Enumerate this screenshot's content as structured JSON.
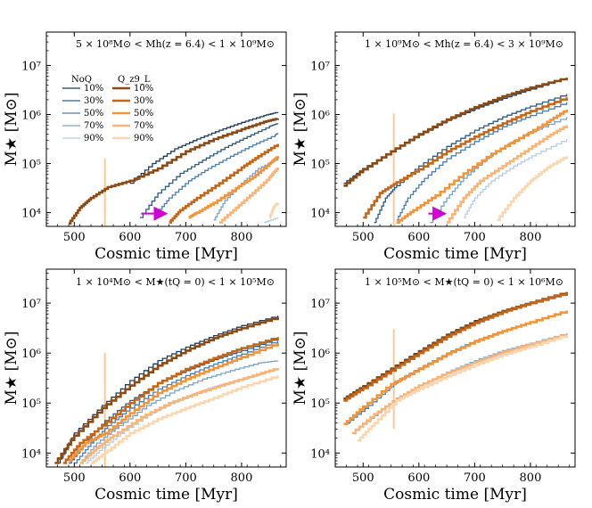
{
  "figure": {
    "xlabel": "Cosmic time [Myr]",
    "ylabel": "M★ [M⊙]"
  },
  "legend": {
    "noq_header": "NoQ",
    "q_header": "Q_z9_L",
    "percentiles": [
      "10%",
      "30%",
      "50%",
      "70%",
      "90%"
    ]
  },
  "colors": {
    "blues": [
      "#1f3b5c",
      "#2e5a85",
      "#4a7eb0",
      "#7aa3cc",
      "#b7cde3"
    ],
    "oranges": [
      "#8b4a14",
      "#c4661a",
      "#f2943a",
      "#f8b479",
      "#fcd6b0"
    ],
    "marker_line": "#fcc89a",
    "arrow": "#d100d1"
  },
  "chart_data": [
    {
      "type": "line",
      "title": "5 × 10⁸M⊙ < Mh(z = 6.4) < 1 × 10⁹M⊙",
      "xlabel": "Cosmic time [Myr]",
      "ylabel": "M★ [M⊙]",
      "xlim": [
        450,
        880
      ],
      "ylim_log10": [
        3.72,
        7.68
      ],
      "yscale": "log",
      "x_ticks": [
        500,
        600,
        700,
        800
      ],
      "y_ticks": [
        "10⁴",
        "10⁵",
        "10⁶",
        "10⁷"
      ],
      "vline": {
        "x": 555,
        "y_from": 3.7,
        "y_to": 5.1
      },
      "arrow": {
        "x_from": 620,
        "x_to": 668,
        "y": 3.98
      },
      "series": [
        {
          "name": "NoQ 10%",
          "x": [
            600,
            640,
            680,
            720,
            760,
            800,
            840,
            865
          ],
          "y": [
            4.6,
            5.0,
            5.3,
            5.5,
            5.68,
            5.84,
            5.98,
            6.05
          ]
        },
        {
          "name": "NoQ 30%",
          "x": [
            618,
            650,
            690,
            730,
            770,
            810,
            850,
            865
          ],
          "y": [
            3.9,
            4.4,
            4.8,
            5.07,
            5.33,
            5.55,
            5.76,
            5.82
          ]
        },
        {
          "name": "NoQ 50%",
          "x": [
            645,
            670,
            705,
            740,
            780,
            820,
            860,
            865
          ],
          "y": [
            3.95,
            4.3,
            4.65,
            4.9,
            5.15,
            5.38,
            5.58,
            5.62
          ]
        },
        {
          "name": "NoQ 70%",
          "x": [
            750,
            770,
            800,
            830,
            865
          ],
          "y": [
            3.85,
            4.25,
            4.6,
            4.9,
            5.1
          ]
        },
        {
          "name": "NoQ 90%",
          "x": [
            840,
            865
          ],
          "y": [
            3.8,
            3.9
          ]
        },
        {
          "name": "Q_z9_L 10%",
          "x": [
            490,
            510,
            530,
            560,
            600,
            650,
            700,
            750,
            800,
            840,
            865
          ],
          "y": [
            3.78,
            4.1,
            4.3,
            4.52,
            4.65,
            4.9,
            5.25,
            5.5,
            5.7,
            5.85,
            5.92
          ]
        },
        {
          "name": "Q_z9_L 30%",
          "x": [
            670,
            690,
            720,
            760,
            800,
            830,
            865
          ],
          "y": [
            3.8,
            4.05,
            4.3,
            4.6,
            4.92,
            5.15,
            5.4
          ]
        },
        {
          "name": "Q_z9_L 50%",
          "x": [
            705,
            720,
            750,
            790,
            820,
            850,
            865
          ],
          "y": [
            3.9,
            4.0,
            4.2,
            4.5,
            4.72,
            5.0,
            5.15
          ]
        },
        {
          "name": "Q_z9_L 70%",
          "x": [
            760,
            790,
            820,
            850,
            865
          ],
          "y": [
            3.8,
            4.1,
            4.4,
            4.72,
            4.92
          ]
        },
        {
          "name": "Q_z9_L 90%",
          "x": [
            850,
            858,
            865
          ],
          "y": [
            3.9,
            4.12,
            4.2
          ]
        }
      ]
    },
    {
      "type": "line",
      "title": "1 × 10⁹M⊙ < Mh(z = 6.4) < 3 × 10⁹M⊙",
      "xlabel": "Cosmic time [Myr]",
      "ylabel": "M★ [M⊙]",
      "xlim": [
        450,
        880
      ],
      "ylim_log10": [
        3.72,
        7.68
      ],
      "yscale": "log",
      "x_ticks": [
        500,
        600,
        700,
        800
      ],
      "y_ticks": [
        "10⁴",
        "10⁵",
        "10⁶",
        "10⁷"
      ],
      "vline": {
        "x": 555,
        "y_from": 3.7,
        "y_to": 6.02
      },
      "arrow": {
        "x_from": 617,
        "x_to": 650,
        "y": 3.98
      },
      "series": [
        {
          "name": "NoQ 10%",
          "x": [
            465,
            500,
            550,
            600,
            650,
            700,
            750,
            800,
            865
          ],
          "y": [
            4.6,
            4.9,
            5.25,
            5.58,
            5.88,
            6.12,
            6.33,
            6.52,
            6.75
          ]
        },
        {
          "name": "NoQ 30%",
          "x": [
            520,
            540,
            560,
            600,
            650,
            700,
            750,
            800,
            865
          ],
          "y": [
            3.8,
            4.3,
            4.55,
            4.95,
            5.35,
            5.68,
            5.95,
            6.17,
            6.42
          ]
        },
        {
          "name": "NoQ 50%",
          "x": [
            560,
            580,
            610,
            650,
            700,
            750,
            800,
            865
          ],
          "y": [
            3.85,
            4.3,
            4.7,
            5.1,
            5.45,
            5.75,
            5.98,
            6.25
          ]
        },
        {
          "name": "NoQ 70%",
          "x": [
            620,
            650,
            680,
            720,
            760,
            800,
            865
          ],
          "y": [
            3.8,
            4.3,
            4.7,
            5.1,
            5.4,
            5.65,
            5.95
          ]
        },
        {
          "name": "NoQ 90%",
          "x": [
            680,
            700,
            730,
            770,
            810,
            865
          ],
          "y": [
            3.9,
            4.3,
            4.65,
            4.95,
            5.2,
            5.5
          ]
        },
        {
          "name": "Q_z9_L 10%",
          "x": [
            465,
            500,
            550,
            600,
            650,
            700,
            750,
            800,
            865
          ],
          "y": [
            4.55,
            4.88,
            5.25,
            5.6,
            5.9,
            6.15,
            6.37,
            6.55,
            6.75
          ]
        },
        {
          "name": "Q_z9_L 30%",
          "x": [
            500,
            530,
            560,
            600,
            650,
            700,
            750,
            800,
            865
          ],
          "y": [
            3.9,
            4.4,
            4.62,
            4.88,
            5.25,
            5.55,
            5.82,
            6.07,
            6.35
          ]
        },
        {
          "name": "Q_z9_L 50%",
          "x": [
            560,
            590,
            630,
            680,
            730,
            780,
            830,
            865
          ],
          "y": [
            3.8,
            4.05,
            4.35,
            4.8,
            5.2,
            5.52,
            5.85,
            6.1
          ]
        },
        {
          "name": "Q_z9_L 70%",
          "x": [
            650,
            680,
            710,
            750,
            790,
            830,
            865
          ],
          "y": [
            3.8,
            4.3,
            4.65,
            4.95,
            5.25,
            5.55,
            5.78
          ]
        },
        {
          "name": "Q_z9_L 90%",
          "x": [
            740,
            770,
            800,
            830,
            865
          ],
          "y": [
            3.85,
            4.3,
            4.65,
            4.92,
            5.15
          ]
        }
      ]
    },
    {
      "type": "line",
      "title": "1 × 10⁴M⊙ < M★(tQ = 0) < 1 × 10⁵M⊙",
      "xlabel": "Cosmic time [Myr]",
      "ylabel": "M★ [M⊙]",
      "xlim": [
        450,
        880
      ],
      "ylim_log10": [
        3.72,
        7.68
      ],
      "yscale": "log",
      "x_ticks": [
        500,
        600,
        700,
        800
      ],
      "y_ticks": [
        "10⁴",
        "10⁵",
        "10⁶",
        "10⁷"
      ],
      "vline": {
        "x": 555,
        "y_from": 3.72,
        "y_to": 6.0
      },
      "series": [
        {
          "name": "NoQ 10%",
          "x": [
            470,
            500,
            550,
            600,
            650,
            700,
            750,
            800,
            865
          ],
          "y": [
            3.8,
            4.4,
            4.95,
            5.45,
            5.85,
            6.12,
            6.35,
            6.55,
            6.75
          ]
        },
        {
          "name": "NoQ 30%",
          "x": [
            490,
            520,
            555,
            600,
            650,
            700,
            750,
            800,
            865
          ],
          "y": [
            3.8,
            4.2,
            4.65,
            5.05,
            5.4,
            5.65,
            5.87,
            6.05,
            6.3
          ]
        },
        {
          "name": "NoQ 50%",
          "x": [
            500,
            530,
            560,
            600,
            650,
            700,
            750,
            800,
            865
          ],
          "y": [
            3.8,
            4.2,
            4.55,
            4.9,
            5.28,
            5.55,
            5.78,
            5.98,
            6.25
          ]
        },
        {
          "name": "NoQ 70%",
          "x": [
            510,
            540,
            580,
            630,
            680,
            730,
            780,
            830,
            865
          ],
          "y": [
            3.8,
            4.2,
            4.55,
            4.95,
            5.25,
            5.48,
            5.65,
            5.8,
            5.85
          ]
        },
        {
          "name": "NoQ 90%",
          "x": [
            520,
            550,
            590,
            640,
            690,
            740,
            790,
            840,
            865
          ],
          "y": [
            3.8,
            4.1,
            4.45,
            4.82,
            5.08,
            5.3,
            5.45,
            5.6,
            5.68
          ]
        },
        {
          "name": "Q_z9_L 10%",
          "x": [
            465,
            500,
            550,
            600,
            650,
            700,
            750,
            800,
            865
          ],
          "y": [
            3.8,
            4.35,
            4.9,
            5.35,
            5.75,
            6.05,
            6.3,
            6.5,
            6.72
          ]
        },
        {
          "name": "Q_z9_L 30%",
          "x": [
            480,
            510,
            550,
            600,
            650,
            700,
            750,
            800,
            865
          ],
          "y": [
            3.8,
            4.2,
            4.55,
            5.0,
            5.4,
            5.68,
            5.9,
            6.1,
            6.32
          ]
        },
        {
          "name": "Q_z9_L 50%",
          "x": [
            490,
            520,
            555,
            600,
            650,
            700,
            750,
            800,
            865
          ],
          "y": [
            3.85,
            4.2,
            4.4,
            4.8,
            5.2,
            5.48,
            5.7,
            5.92,
            6.2
          ]
        },
        {
          "name": "Q_z9_L 70%",
          "x": [
            510,
            540,
            570,
            620,
            670,
            720,
            770,
            820,
            865
          ],
          "y": [
            3.8,
            4.1,
            4.35,
            4.72,
            5.0,
            5.2,
            5.38,
            5.55,
            5.7
          ]
        },
        {
          "name": "Q_z9_L 90%",
          "x": [
            530,
            560,
            600,
            650,
            700,
            750,
            800,
            865
          ],
          "y": [
            3.8,
            4.05,
            4.4,
            4.68,
            4.9,
            5.1,
            5.32,
            5.55
          ]
        }
      ]
    },
    {
      "type": "line",
      "title": "1 × 10⁵M⊙ < M★(tQ = 0) < 1 × 10⁶M⊙",
      "xlabel": "Cosmic time [Myr]",
      "ylabel": "M★ [M⊙]",
      "xlim": [
        450,
        880
      ],
      "ylim_log10": [
        3.72,
        7.68
      ],
      "yscale": "log",
      "x_ticks": [
        500,
        600,
        700,
        800
      ],
      "y_ticks": [
        "10⁴",
        "10⁵",
        "10⁶",
        "10⁷"
      ],
      "vline": {
        "x": 555,
        "y_from": 4.48,
        "y_to": 6.48
      },
      "series": [
        {
          "name": "NoQ 10%",
          "x": [
            465,
            500,
            550,
            600,
            650,
            700,
            750,
            800,
            865
          ],
          "y": [
            5.1,
            5.35,
            5.7,
            6.05,
            6.38,
            6.65,
            6.85,
            7.02,
            7.22
          ]
        },
        {
          "name": "NoQ 30%",
          "x": [
            465,
            500,
            550,
            600,
            650,
            700,
            750,
            800,
            865
          ],
          "y": [
            5.05,
            5.32,
            5.68,
            6.02,
            6.35,
            6.62,
            6.83,
            7.0,
            7.2
          ]
        },
        {
          "name": "NoQ 50%",
          "x": [
            470,
            510,
            555,
            600,
            650,
            700,
            750,
            800,
            865
          ],
          "y": [
            4.6,
            4.95,
            5.4,
            5.7,
            6.0,
            6.25,
            6.45,
            6.62,
            6.85
          ]
        },
        {
          "name": "NoQ 70%",
          "x": [
            480,
            520,
            560,
            600,
            650,
            700,
            750,
            800,
            865
          ],
          "y": [
            4.4,
            4.75,
            5.1,
            5.35,
            5.62,
            5.85,
            6.05,
            6.2,
            6.4
          ]
        },
        {
          "name": "NoQ 90%",
          "x": [
            490,
            520,
            560,
            600,
            650,
            700,
            750,
            800,
            865
          ],
          "y": [
            4.25,
            4.6,
            5.05,
            5.3,
            5.55,
            5.78,
            5.98,
            6.15,
            6.38
          ]
        },
        {
          "name": "Q_z9_L 10%",
          "x": [
            465,
            500,
            550,
            600,
            650,
            700,
            750,
            800,
            865
          ],
          "y": [
            5.08,
            5.33,
            5.68,
            6.03,
            6.36,
            6.63,
            6.84,
            7.01,
            7.22
          ]
        },
        {
          "name": "Q_z9_L 30%",
          "x": [
            465,
            500,
            550,
            600,
            650,
            700,
            750,
            800,
            865
          ],
          "y": [
            5.05,
            5.3,
            5.65,
            6.0,
            6.33,
            6.6,
            6.82,
            7.0,
            7.2
          ]
        },
        {
          "name": "Q_z9_L 50%",
          "x": [
            465,
            500,
            550,
            600,
            650,
            700,
            750,
            800,
            865
          ],
          "y": [
            4.58,
            4.93,
            5.38,
            5.68,
            5.98,
            6.23,
            6.44,
            6.62,
            6.85
          ]
        },
        {
          "name": "Q_z9_L 70%",
          "x": [
            480,
            520,
            560,
            600,
            650,
            700,
            750,
            800,
            865
          ],
          "y": [
            4.4,
            4.78,
            5.08,
            5.35,
            5.6,
            5.82,
            6.02,
            6.18,
            6.38
          ]
        },
        {
          "name": "Q_z9_L 90%",
          "x": [
            490,
            520,
            560,
            600,
            650,
            700,
            750,
            800,
            865
          ],
          "y": [
            4.25,
            4.6,
            5.05,
            5.28,
            5.53,
            5.76,
            5.96,
            6.13,
            6.36
          ]
        }
      ]
    }
  ]
}
